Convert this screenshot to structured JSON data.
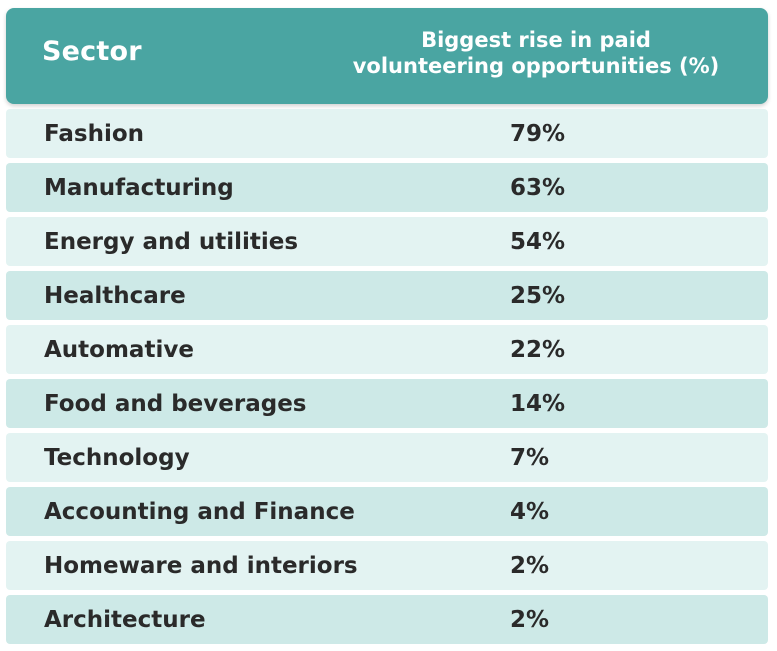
{
  "chart_data": {
    "type": "table",
    "columns": [
      "Sector",
      "Biggest rise in paid volunteering opportunities (%)"
    ],
    "header": {
      "sector": "Sector",
      "value_line1": "Biggest rise in paid",
      "value_line2": "volunteering opportunities (%)"
    },
    "rows": [
      {
        "sector": "Fashion",
        "value": "79%"
      },
      {
        "sector": "Manufacturing",
        "value": "63%"
      },
      {
        "sector": "Energy and utilities",
        "value": "54%"
      },
      {
        "sector": "Healthcare",
        "value": "25%"
      },
      {
        "sector": "Automative",
        "value": "22%"
      },
      {
        "sector": "Food and beverages",
        "value": "14%"
      },
      {
        "sector": "Technology",
        "value": "7%"
      },
      {
        "sector": "Accounting and Finance",
        "value": "4%"
      },
      {
        "sector": "Homeware and interiors",
        "value": "2%"
      },
      {
        "sector": "Architecture",
        "value": "2%"
      }
    ],
    "values": [
      79,
      63,
      54,
      25,
      22,
      14,
      7,
      4,
      2,
      2
    ],
    "colors": {
      "header_bg": "#4aa5a2",
      "row_light": "#e3f3f2",
      "row_dark": "#cde9e7",
      "text": "#2a2a2a"
    }
  }
}
